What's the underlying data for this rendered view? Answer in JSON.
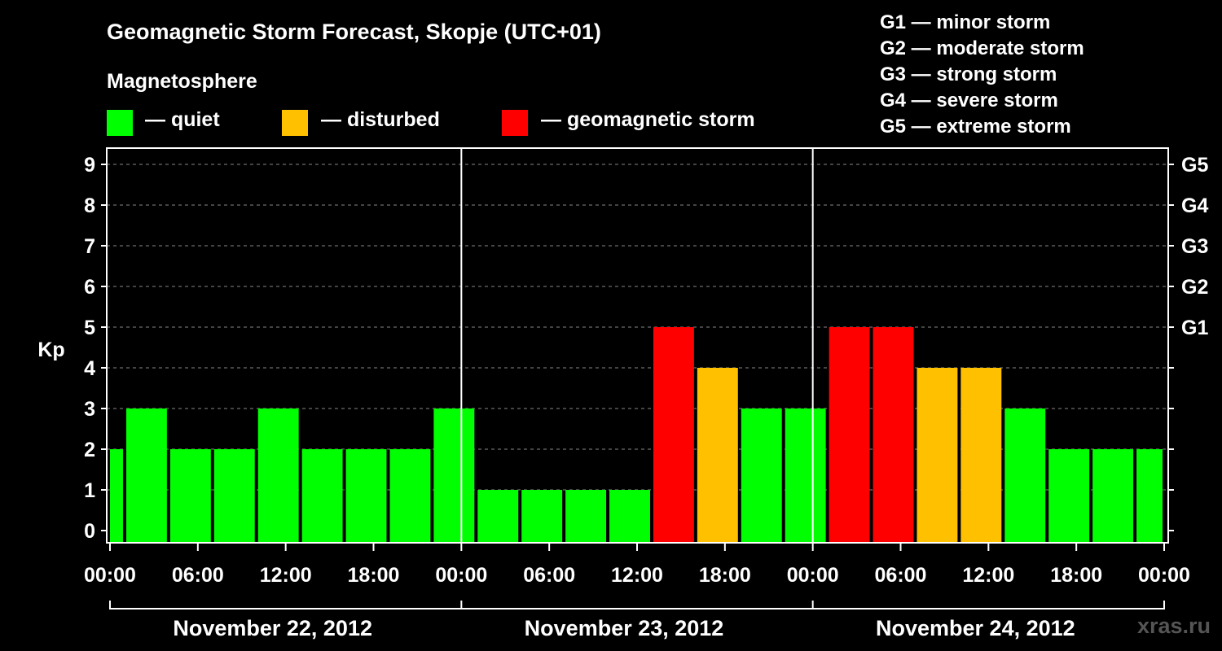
{
  "chart_data": {
    "type": "bar",
    "title": "Geomagnetic Storm Forecast, Skopje (UTC+01)",
    "ylabel": "Kp",
    "ylim": [
      0,
      9
    ],
    "yticks": [
      "0",
      "1",
      "2",
      "3",
      "4",
      "5",
      "6",
      "7",
      "8",
      "9"
    ],
    "right_ticks": [
      {
        "kp": 5,
        "label": "G1"
      },
      {
        "kp": 6,
        "label": "G2"
      },
      {
        "kp": 7,
        "label": "G3"
      },
      {
        "kp": 8,
        "label": "G4"
      },
      {
        "kp": 9,
        "label": "G5"
      }
    ],
    "xticks": [
      {
        "hour": 0,
        "label": "00:00"
      },
      {
        "hour": 6,
        "label": "06:00"
      },
      {
        "hour": 12,
        "label": "12:00"
      },
      {
        "hour": 18,
        "label": "18:00"
      },
      {
        "hour": 24,
        "label": "00:00"
      },
      {
        "hour": 30,
        "label": "06:00"
      },
      {
        "hour": 36,
        "label": "12:00"
      },
      {
        "hour": 42,
        "label": "18:00"
      },
      {
        "hour": 48,
        "label": "00:00"
      },
      {
        "hour": 54,
        "label": "06:00"
      },
      {
        "hour": 60,
        "label": "12:00"
      },
      {
        "hour": 66,
        "label": "18:00"
      },
      {
        "hour": 72,
        "label": "00:00"
      }
    ],
    "days": [
      {
        "label": "November 22, 2012",
        "start": 0,
        "end": 24
      },
      {
        "label": "November 23, 2012",
        "start": 24,
        "end": 48
      },
      {
        "label": "November 24, 2012",
        "start": 48,
        "end": 72
      }
    ],
    "grid": true,
    "bars": [
      {
        "start": 0,
        "end": 1,
        "kp": 2,
        "level": "quiet"
      },
      {
        "start": 1,
        "end": 4,
        "kp": 3,
        "level": "quiet"
      },
      {
        "start": 4,
        "end": 7,
        "kp": 2,
        "level": "quiet"
      },
      {
        "start": 7,
        "end": 10,
        "kp": 2,
        "level": "quiet"
      },
      {
        "start": 10,
        "end": 13,
        "kp": 3,
        "level": "quiet"
      },
      {
        "start": 13,
        "end": 16,
        "kp": 2,
        "level": "quiet"
      },
      {
        "start": 16,
        "end": 19,
        "kp": 2,
        "level": "quiet"
      },
      {
        "start": 19,
        "end": 22,
        "kp": 2,
        "level": "quiet"
      },
      {
        "start": 22,
        "end": 25,
        "kp": 3,
        "level": "quiet"
      },
      {
        "start": 25,
        "end": 28,
        "kp": 1,
        "level": "quiet"
      },
      {
        "start": 28,
        "end": 31,
        "kp": 1,
        "level": "quiet"
      },
      {
        "start": 31,
        "end": 34,
        "kp": 1,
        "level": "quiet"
      },
      {
        "start": 34,
        "end": 37,
        "kp": 1,
        "level": "quiet"
      },
      {
        "start": 37,
        "end": 40,
        "kp": 5,
        "level": "storm"
      },
      {
        "start": 40,
        "end": 43,
        "kp": 4,
        "level": "disturbed"
      },
      {
        "start": 43,
        "end": 46,
        "kp": 3,
        "level": "quiet"
      },
      {
        "start": 46,
        "end": 49,
        "kp": 3,
        "level": "quiet"
      },
      {
        "start": 49,
        "end": 52,
        "kp": 5,
        "level": "storm"
      },
      {
        "start": 52,
        "end": 55,
        "kp": 5,
        "level": "storm"
      },
      {
        "start": 55,
        "end": 58,
        "kp": 4,
        "level": "disturbed"
      },
      {
        "start": 58,
        "end": 61,
        "kp": 4,
        "level": "disturbed"
      },
      {
        "start": 61,
        "end": 64,
        "kp": 3,
        "level": "quiet"
      },
      {
        "start": 64,
        "end": 67,
        "kp": 2,
        "level": "quiet"
      },
      {
        "start": 67,
        "end": 70,
        "kp": 2,
        "level": "quiet"
      },
      {
        "start": 70,
        "end": 72,
        "kp": 2,
        "level": "quiet"
      }
    ],
    "colors": {
      "quiet": "#00ff00",
      "disturbed": "#ffc000",
      "storm": "#ff0000"
    }
  },
  "legend": {
    "heading": "Magnetosphere",
    "items": [
      {
        "label": "— quiet",
        "color": "#00ff00"
      },
      {
        "label": "— disturbed",
        "color": "#ffc000"
      },
      {
        "label": "— geomagnetic storm",
        "color": "#ff0000"
      }
    ]
  },
  "g_scale": [
    "G1 — minor storm",
    "G2 — moderate storm",
    "G3 — strong storm",
    "G4 — severe storm",
    "G5 — extreme storm"
  ],
  "watermark": "xras.ru"
}
